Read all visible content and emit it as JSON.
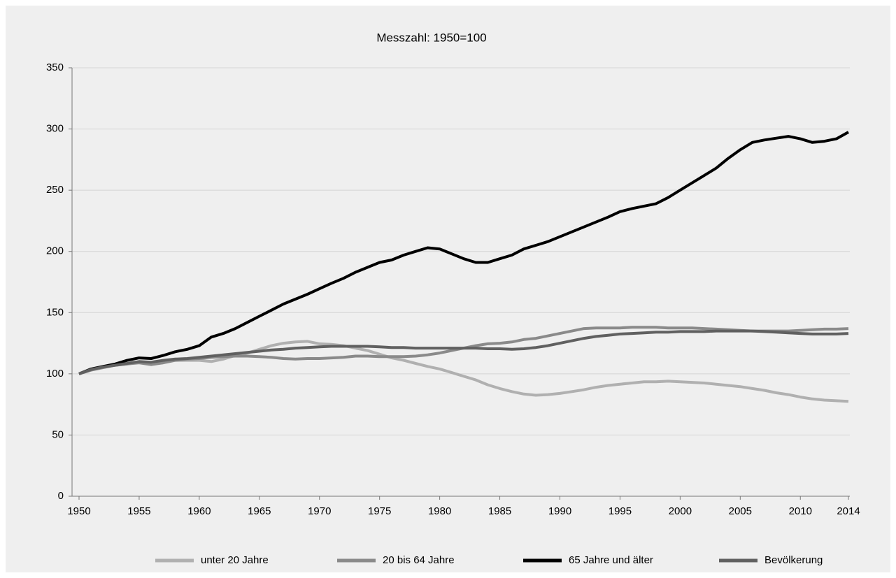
{
  "chart_data": {
    "type": "line",
    "title": "Messzahl: 1950=100",
    "x": [
      1950,
      1951,
      1952,
      1953,
      1954,
      1955,
      1956,
      1957,
      1958,
      1959,
      1960,
      1961,
      1962,
      1963,
      1964,
      1965,
      1966,
      1967,
      1968,
      1969,
      1970,
      1971,
      1972,
      1973,
      1974,
      1975,
      1976,
      1977,
      1978,
      1979,
      1980,
      1981,
      1982,
      1983,
      1984,
      1985,
      1986,
      1987,
      1988,
      1989,
      1990,
      1991,
      1992,
      1993,
      1994,
      1995,
      1996,
      1997,
      1998,
      1999,
      2000,
      2001,
      2002,
      2003,
      2004,
      2005,
      2006,
      2007,
      2008,
      2009,
      2010,
      2011,
      2012,
      2013,
      2014
    ],
    "series": [
      {
        "name": "unter 20 Jahre",
        "color": "#b0b0b0",
        "values": [
          100,
          103,
          106,
          107,
          108,
          110,
          108,
          109,
          111,
          111,
          111,
          110,
          112,
          115,
          117,
          120,
          123,
          125,
          126,
          126.5,
          124.5,
          124,
          123,
          121,
          119,
          116,
          113,
          111,
          108.5,
          106,
          104,
          101,
          98,
          95,
          91,
          88,
          85.5,
          83.5,
          82.5,
          83,
          84,
          85.5,
          87,
          89,
          90.5,
          91.5,
          92.5,
          93.5,
          93.5,
          94,
          93.5,
          93,
          92.5,
          91.5,
          90.5,
          89.5,
          88,
          86.5,
          84.5,
          83,
          81,
          79.5,
          78.5,
          78,
          77.5
        ]
      },
      {
        "name": "20 bis 64 Jahre",
        "color": "#8a8a8a",
        "values": [
          100,
          103,
          105,
          107,
          108,
          109,
          107.5,
          109,
          111,
          112,
          112.5,
          113.5,
          114,
          114.5,
          114.5,
          114,
          113.5,
          112.5,
          112,
          112.5,
          112.5,
          113,
          113.5,
          114.5,
          114.5,
          114,
          114,
          114,
          114.5,
          115.5,
          117,
          119,
          121,
          123,
          124.5,
          125,
          126,
          128,
          129,
          131,
          133,
          135,
          137,
          137.5,
          137.5,
          137.5,
          138,
          138,
          138,
          137.5,
          137.5,
          137.5,
          137,
          136.5,
          136,
          135.5,
          135,
          135,
          135,
          135,
          135.5,
          136,
          136.5,
          136.5,
          137
        ]
      },
      {
        "name": "65 Jahre und älter",
        "color": "#000000",
        "values": [
          100,
          104,
          106,
          108,
          111,
          113,
          112.5,
          115,
          118,
          120,
          123,
          130,
          133,
          137,
          142,
          147,
          152,
          157,
          161,
          165,
          169.5,
          174,
          178,
          183,
          187,
          191,
          193,
          197,
          200,
          203,
          202,
          198,
          194,
          191,
          191,
          194,
          197,
          202,
          205,
          208,
          212,
          216,
          220,
          224,
          228,
          232.5,
          235,
          237,
          239,
          244,
          250,
          256,
          262,
          268,
          276,
          283,
          289,
          291,
          292.5,
          294,
          292,
          289,
          290,
          292,
          297.5
        ]
      },
      {
        "name": "Bevölkerung",
        "color": "#606060",
        "values": [
          100,
          103.5,
          105.5,
          107,
          108.5,
          110,
          109.5,
          111,
          112,
          112.5,
          113.5,
          114.5,
          115.5,
          116.5,
          117.5,
          118.5,
          119.5,
          120,
          121,
          121.5,
          122,
          122.5,
          122.5,
          122.5,
          122.5,
          122,
          121.5,
          121.5,
          121,
          121,
          121,
          121,
          121,
          121,
          120.5,
          120.5,
          120,
          120.5,
          121.5,
          123,
          125,
          127,
          129,
          130.5,
          131.5,
          132.5,
          133,
          133.5,
          134,
          134,
          134.5,
          134.5,
          134.5,
          135,
          135,
          135,
          135,
          134.5,
          134,
          133.5,
          133,
          132.5,
          132.5,
          132.5,
          133
        ]
      }
    ],
    "xlim": [
      1950,
      2014
    ],
    "xticks": [
      1950,
      1955,
      1960,
      1965,
      1970,
      1975,
      1980,
      1985,
      1990,
      1995,
      2000,
      2005,
      2010,
      2014
    ],
    "ylim": [
      0,
      350
    ],
    "yticks": [
      0,
      50,
      100,
      150,
      200,
      250,
      300,
      350
    ],
    "grid": true,
    "legend": "bottom"
  }
}
